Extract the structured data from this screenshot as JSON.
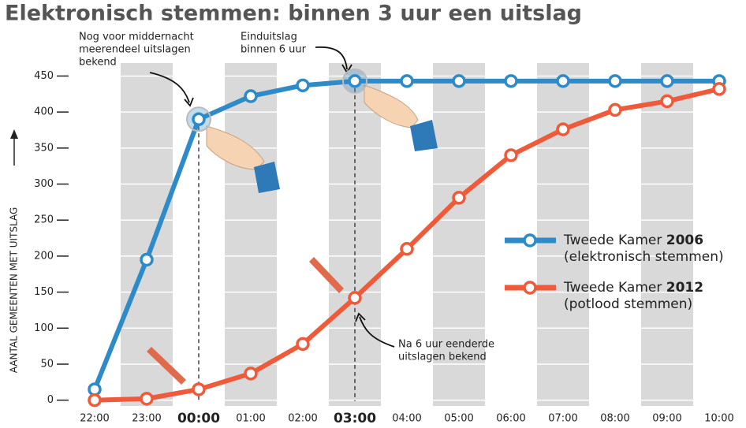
{
  "chart_data": {
    "type": "line",
    "title": "Elektronisch stemmen: binnen 3 uur een uitslag",
    "y_label": "AANTAL GEMEENTEN MET UITSLAG",
    "categories": [
      "22:00",
      "23:00",
      "00:00",
      "01:00",
      "02:00",
      "03:00",
      "04:00",
      "05:00",
      "06:00",
      "07:00",
      "08:00",
      "09:00",
      "10:00"
    ],
    "bold_categories": [
      2,
      5
    ],
    "series": [
      {
        "name": "Tweede Kamer 2006",
        "note": "(elektronisch stemmen)",
        "color": "#2e8bc8",
        "values": [
          15,
          195,
          390,
          422,
          437,
          443,
          443,
          443,
          443,
          443,
          443,
          443,
          443
        ]
      },
      {
        "name": "Tweede Kamer 2012",
        "note": "(potlood stemmen)",
        "color": "#ef5a3a",
        "values": [
          0,
          2,
          15,
          37,
          78,
          142,
          210,
          281,
          340,
          376,
          403,
          415,
          432
        ]
      }
    ],
    "ylim": [
      -8,
      468
    ],
    "yticks": [
      0,
      50,
      100,
      150,
      200,
      250,
      300,
      350,
      400,
      450
    ],
    "grid": true,
    "annotations": [
      [
        "Nog voor middernacht",
        "meerendeel uitslagen",
        "bekend"
      ],
      [
        "Einduitslag",
        "binnen 6 uur"
      ],
      [
        "Na 6 uur eenderde",
        "uitslagen bekend"
      ]
    ]
  }
}
